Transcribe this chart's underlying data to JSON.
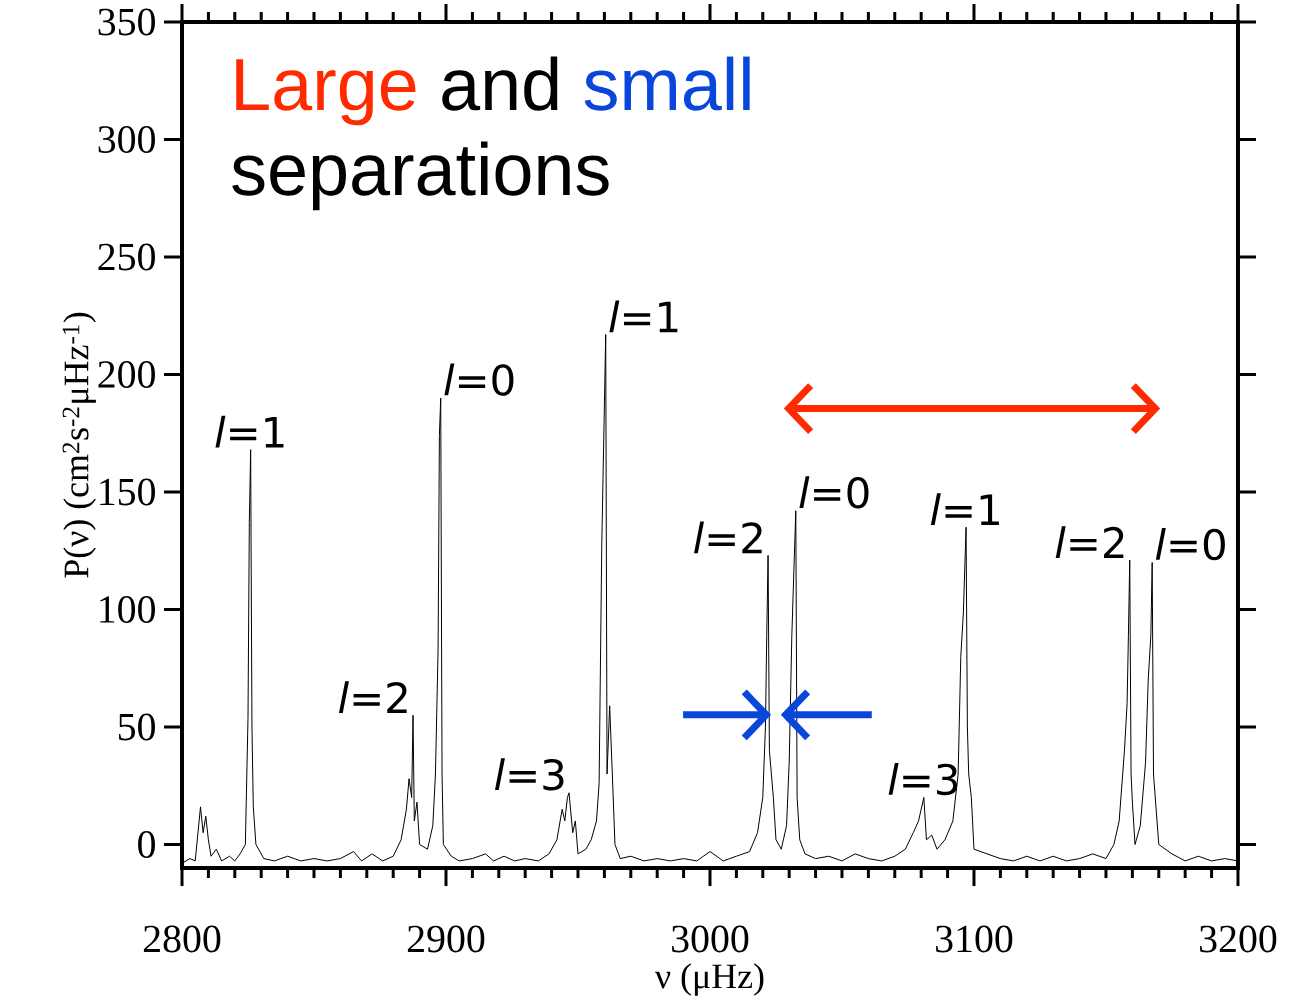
{
  "chart_data": {
    "type": "line",
    "xlabel": "ν (μHz)",
    "ylabel": "P(ν) (cm$^{2}$s$^{-2}$μHz$^{-1}$)",
    "xlim": [
      2800,
      3200
    ],
    "ylim": [
      -10,
      350
    ],
    "xticks": [
      2800,
      2900,
      3000,
      3100,
      3200
    ],
    "yticks": [
      0,
      50,
      100,
      150,
      200,
      250,
      300,
      350
    ],
    "color": "#000000",
    "x": [
      2800,
      2803,
      2805,
      2807,
      2808,
      2809,
      2810,
      2811,
      2813,
      2815,
      2818,
      2820,
      2822,
      2824,
      2825,
      2825.5,
      2826,
      2826.5,
      2827,
      2828,
      2831,
      2835,
      2840,
      2845,
      2850,
      2855,
      2860,
      2865,
      2868,
      2872,
      2876,
      2880,
      2883,
      2885,
      2886,
      2887,
      2887.5,
      2888,
      2889,
      2890,
      2893,
      2895,
      2896,
      2897,
      2897.5,
      2898,
      2898.5,
      2899,
      2902,
      2905,
      2910,
      2915,
      2918,
      2922,
      2926,
      2930,
      2935,
      2939,
      2942,
      2944,
      2945,
      2946,
      2946.6,
      2948,
      2949,
      2950,
      2953,
      2955,
      2957,
      2958,
      2959,
      2960.5,
      2961,
      2962,
      2963,
      2964,
      2966,
      2970,
      2975,
      2980,
      2985,
      2990,
      2995,
      3000,
      3005,
      3010,
      3015,
      3018,
      3020,
      3021,
      3021.5,
      3022,
      3022.5,
      3024,
      3025,
      3027,
      3029,
      3030,
      3031,
      3032.5,
      3033,
      3034,
      3036,
      3040,
      3045,
      3050,
      3055,
      3060,
      3065,
      3070,
      3074,
      3077,
      3079,
      3081,
      3082,
      3084,
      3086,
      3089,
      3092,
      3094,
      3095,
      3096,
      3097,
      3097.5,
      3098,
      3099,
      3100,
      3105,
      3110,
      3115,
      3120,
      3125,
      3130,
      3135,
      3140,
      3145,
      3150,
      3153,
      3155,
      3157,
      3158,
      3158.5,
      3159,
      3159.5,
      3160,
      3161,
      3163,
      3165,
      3166,
      3167,
      3167.5,
      3168,
      3169,
      3170,
      3175,
      3180,
      3185,
      3190,
      3195,
      3200
    ],
    "values": [
      -8,
      -6,
      -7,
      16,
      5,
      12,
      2,
      -5,
      -2,
      -7,
      -5,
      -7,
      -4,
      0,
      54,
      137,
      168,
      50,
      16,
      0,
      -6,
      -7,
      -5,
      -7,
      -6,
      -7,
      -6,
      -3,
      -7,
      -4,
      -7,
      -5,
      2,
      15,
      28,
      20,
      55,
      10,
      18,
      0,
      -2,
      8,
      30,
      83,
      174,
      190,
      30,
      0,
      -5,
      -7,
      -6,
      -4,
      -7,
      -5,
      -7,
      -6,
      -7,
      -4,
      2,
      15,
      10,
      20,
      22,
      5,
      10,
      -4,
      -2,
      2,
      10,
      26,
      127,
      217,
      30,
      59,
      30,
      0,
      -6,
      -5,
      -7,
      -6,
      -7,
      -6,
      -7,
      -3,
      -7,
      -5,
      -3,
      5,
      20,
      50,
      89,
      123,
      40,
      20,
      2,
      -2,
      8,
      35,
      89,
      142,
      20,
      2,
      -4,
      -6,
      -5,
      -7,
      -4,
      -6,
      -7,
      -5,
      -2,
      5,
      10,
      20,
      2,
      4,
      -2,
      2,
      10,
      30,
      80,
      99,
      135,
      50,
      30,
      20,
      -2,
      -4,
      -6,
      -7,
      -5,
      -7,
      -5,
      -7,
      -6,
      -4,
      -6,
      0,
      10,
      40,
      60,
      89,
      121,
      30,
      18,
      0,
      8,
      35,
      70,
      89,
      120,
      30,
      15,
      0,
      -4,
      -7,
      -5,
      -7,
      -6,
      -7
    ],
    "annotations": [
      "Large",
      "and",
      "small",
      "separations",
      {
        "text": "*l*=1",
        "x": 2826,
        "y": 168
      },
      {
        "text": "*l*=2",
        "x": 2887.5,
        "y": 55
      },
      {
        "text": "*l*=0",
        "x": 2898,
        "y": 190
      },
      {
        "text": "*l*=3",
        "x": 2946.6,
        "y": 22
      },
      {
        "text": "*l*=1",
        "x": 2960.5,
        "y": 217
      },
      {
        "text": "*l*=2",
        "x": 3022,
        "y": 123
      },
      {
        "text": "*l*=0",
        "x": 3032.5,
        "y": 142
      },
      {
        "text": "*l*=3",
        "x": 3081,
        "y": 20
      },
      {
        "text": "*l*=1",
        "x": 3097,
        "y": 135
      },
      {
        "text": "*l*=2",
        "x": 3159,
        "y": 121
      },
      {
        "text": "*l*=0",
        "x": 3167.5,
        "y": 120
      }
    ]
  }
}
